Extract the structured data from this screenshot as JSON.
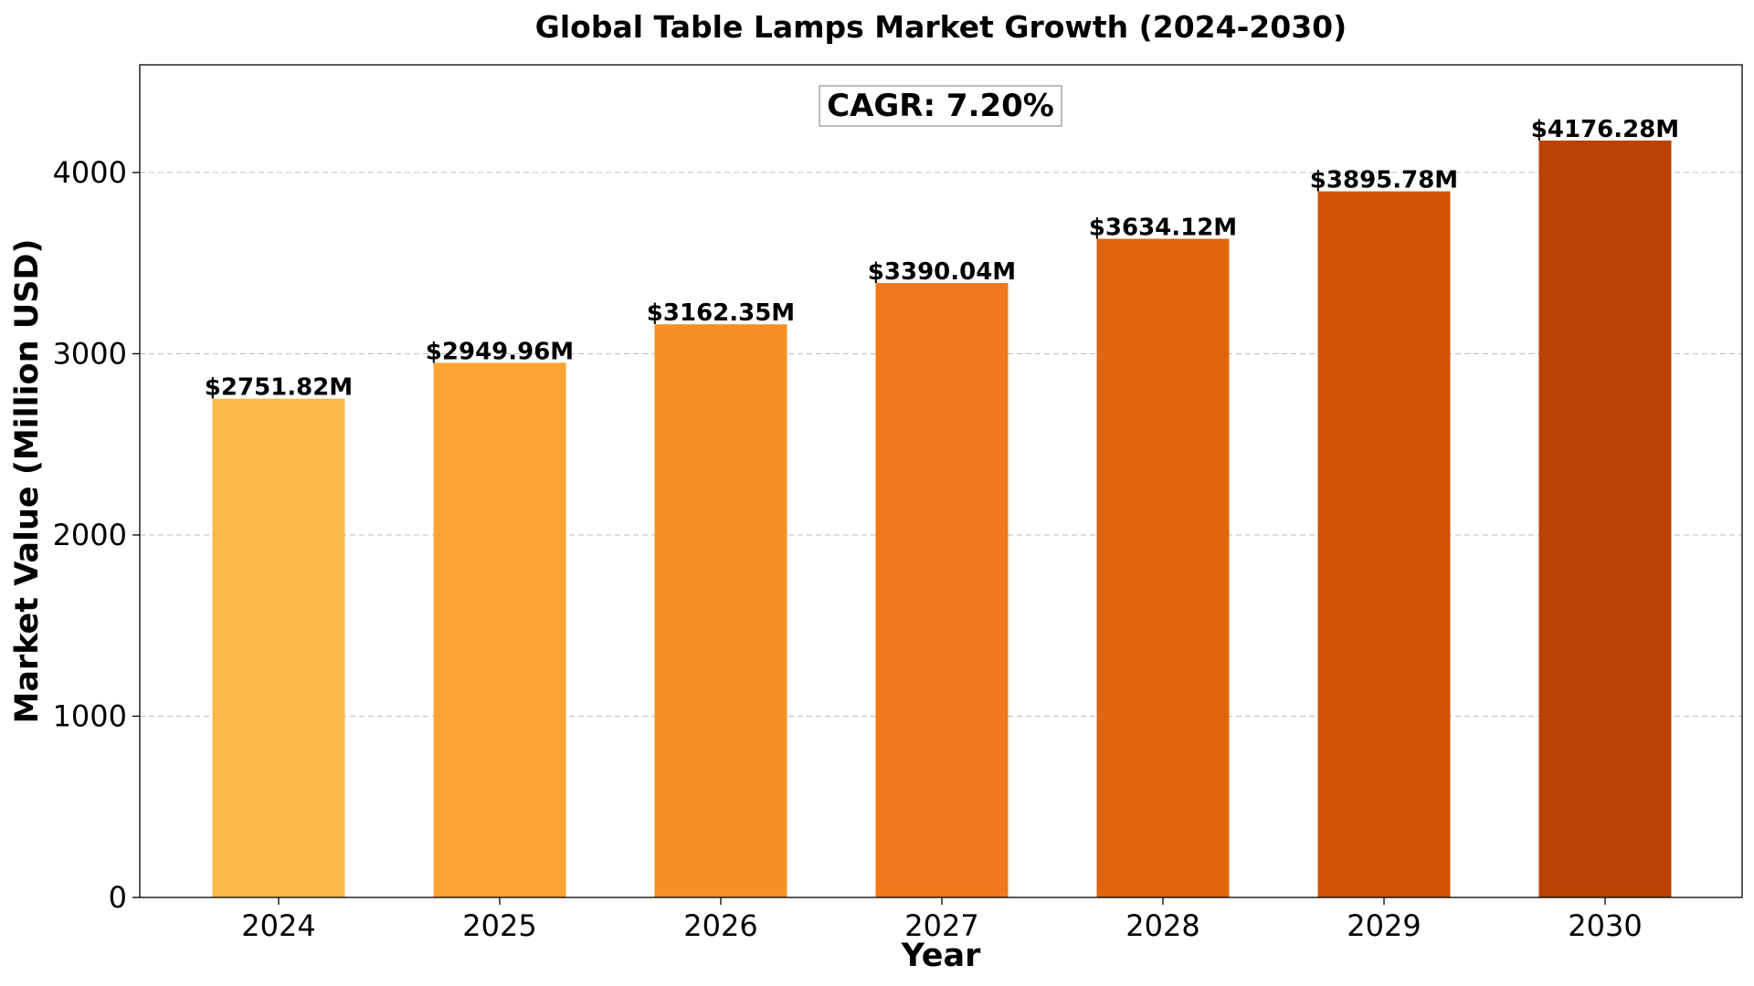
{
  "chart_data": {
    "type": "bar",
    "title": "Global Table Lamps Market Growth (2024-2030)",
    "xlabel": "Year",
    "ylabel": "Market Value (Million USD)",
    "categories": [
      "2024",
      "2025",
      "2026",
      "2027",
      "2028",
      "2029",
      "2030"
    ],
    "values": [
      2751.82,
      2949.96,
      3162.35,
      3390.04,
      3634.12,
      3895.78,
      4176.28
    ],
    "data_labels": [
      "$2751.82M",
      "$2949.96M",
      "$3162.35M",
      "$3390.04M",
      "$3634.12M",
      "$3895.78M",
      "$4176.28M"
    ],
    "bar_colors": [
      "#FDB84A",
      "#FBA333",
      "#F68F24",
      "#EE781B",
      "#E1640F",
      "#D05205",
      "#B84305"
    ],
    "ylim": [
      0,
      4594
    ],
    "yticks": [
      0,
      1000,
      2000,
      3000,
      4000
    ],
    "ytick_labels": [
      "0",
      "1000",
      "2000",
      "3000",
      "4000"
    ],
    "grid": "horizontal-dashed",
    "annotation": "CAGR: 7.20%"
  }
}
